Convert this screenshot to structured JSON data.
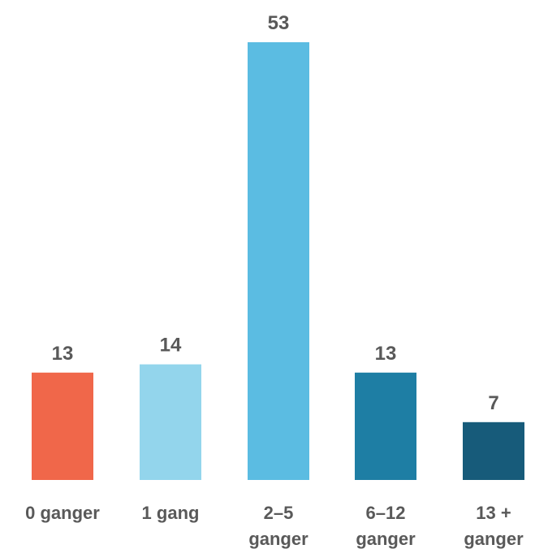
{
  "chart_data": {
    "type": "bar",
    "categories": [
      [
        "0 ganger"
      ],
      [
        "1 gang"
      ],
      [
        "2–5",
        "ganger"
      ],
      [
        "6–12",
        "ganger"
      ],
      [
        "13 +",
        "ganger"
      ]
    ],
    "values": [
      13,
      14,
      53,
      13,
      7
    ],
    "colors": [
      "#f0674a",
      "#93d5ec",
      "#5bbce2",
      "#1e7ea4",
      "#175b7a"
    ],
    "title": "",
    "xlabel": "",
    "ylabel": "",
    "ylim": [
      0,
      53
    ],
    "grid": false,
    "legend": "none"
  }
}
